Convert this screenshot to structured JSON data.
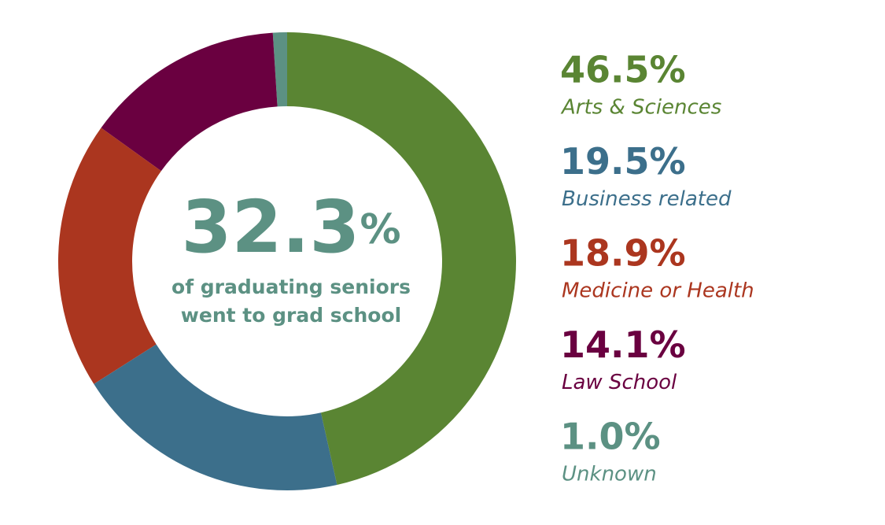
{
  "chart_data": {
    "type": "donut",
    "center_label": "32.3%",
    "center_caption": [
      "of graduating seniors",
      "went to grad school"
    ],
    "categories": [
      "Arts & Sciences",
      "Business related",
      "Medicine or Health",
      "Law School",
      "Unknown"
    ],
    "values": [
      46.5,
      19.5,
      18.9,
      14.1,
      1.0
    ],
    "value_labels": [
      "46.5%",
      "19.5%",
      "18.9%",
      "14.1%",
      "1.0%"
    ],
    "colors": [
      "#5a8533",
      "#3c6f8b",
      "#ab361f",
      "#6a0040",
      "#5c9183"
    ]
  }
}
